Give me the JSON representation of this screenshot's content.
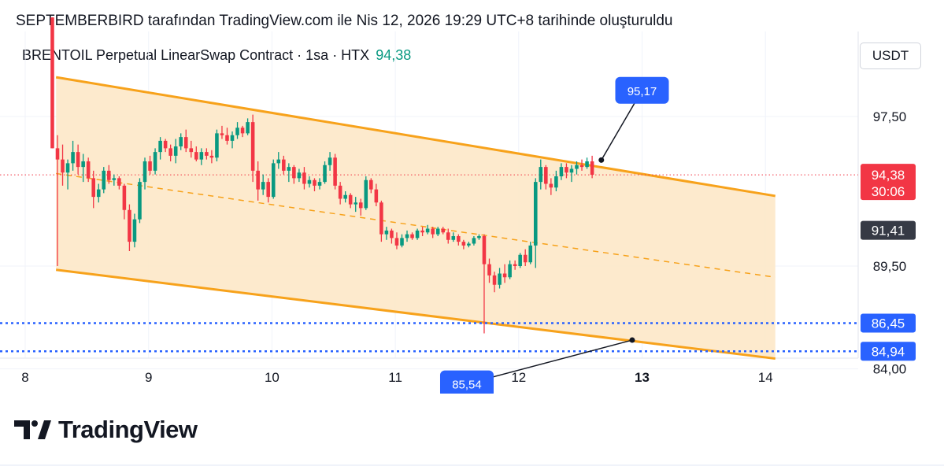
{
  "header": {
    "title": "SEPTEMBERBIRD tarafından TradingView.com ile Nis 12, 2026 19:29 UTC+8 tarihinde oluşturuldu",
    "symbol": "BRENTOIL Perpetual LinearSwap Contract · 1sa · HTX",
    "last_price": "94,38",
    "currency": "USDT"
  },
  "brand": {
    "name": "TradingView"
  },
  "colors": {
    "up": "#089981",
    "down": "#f23645",
    "channel": "#f7a21b",
    "channel_fill": "#fde8c8",
    "level_line": "#2962ff",
    "label_blue": "#2962ff",
    "label_dark": "#363a45"
  },
  "chart_data": {
    "type": "candlestick",
    "x_ticks": [
      {
        "label": "8",
        "t": 8.0,
        "bold": false
      },
      {
        "label": "9",
        "t": 9.0,
        "bold": false
      },
      {
        "label": "10",
        "t": 10.0,
        "bold": false
      },
      {
        "label": "11",
        "t": 11.0,
        "bold": false
      },
      {
        "label": "12",
        "t": 12.0,
        "bold": false
      },
      {
        "label": "13",
        "t": 13.0,
        "bold": true
      },
      {
        "label": "14",
        "t": 14.0,
        "bold": false
      }
    ],
    "y_ticks": [
      "97,50",
      "89,50",
      "84,00"
    ],
    "y_tick_values": [
      97.5,
      89.5,
      84.0
    ],
    "ylim": [
      81.5,
      103
    ],
    "xlim": [
      7.8,
      14.6
    ],
    "last_price": {
      "value": 94.38,
      "label": "94,38",
      "countdown": "30:06"
    },
    "price_labels": [
      {
        "value": 91.41,
        "label": "91,41",
        "style": "dark"
      },
      {
        "value": 86.45,
        "label": "86,45",
        "style": "blue"
      },
      {
        "value": 84.94,
        "label": "84,94",
        "style": "blue"
      }
    ],
    "horizontal_levels": [
      86.45,
      84.94
    ],
    "channel": {
      "upper": [
        [
          8.25,
          99.6
        ],
        [
          14.08,
          93.25
        ]
      ],
      "lower": [
        [
          8.25,
          89.3
        ],
        [
          14.08,
          84.55
        ]
      ],
      "mid": [
        [
          8.25,
          94.45
        ],
        [
          14.08,
          88.9
        ]
      ]
    },
    "callouts": [
      {
        "label": "95,17",
        "value": 95.17,
        "anchor": [
          12.67,
          95.17
        ],
        "box": [
          13.0,
          98.9
        ]
      },
      {
        "label": "85,54",
        "value": 85.54,
        "anchor": [
          12.92,
          85.54
        ],
        "box": [
          11.58,
          83.2
        ]
      }
    ],
    "candles_start": 8.22,
    "candles_step": 0.04167,
    "candles": [
      [
        102.8,
        102.8,
        95.8,
        95.8
      ],
      [
        95.8,
        96.5,
        89.5,
        95.2
      ],
      [
        95.2,
        96.0,
        93.8,
        94.5
      ],
      [
        94.5,
        95.2,
        93.6,
        95.0
      ],
      [
        95.0,
        96.2,
        94.6,
        95.6
      ],
      [
        95.6,
        96.0,
        94.4,
        94.8
      ],
      [
        94.8,
        95.5,
        94.0,
        95.1
      ],
      [
        95.1,
        95.3,
        94.0,
        94.2
      ],
      [
        94.2,
        94.6,
        92.6,
        93.2
      ],
      [
        93.2,
        93.9,
        92.9,
        93.6
      ],
      [
        93.6,
        94.8,
        93.4,
        94.6
      ],
      [
        94.6,
        94.9,
        93.9,
        94.1
      ],
      [
        94.1,
        94.4,
        93.8,
        94.2
      ],
      [
        94.2,
        94.3,
        93.6,
        93.8
      ],
      [
        93.8,
        93.9,
        92.0,
        92.5
      ],
      [
        92.5,
        92.8,
        90.3,
        90.8
      ],
      [
        90.8,
        92.3,
        90.5,
        92.0
      ],
      [
        92.0,
        94.2,
        91.8,
        94.0
      ],
      [
        94.0,
        95.3,
        93.6,
        95.1
      ],
      [
        95.1,
        95.4,
        94.4,
        94.6
      ],
      [
        94.6,
        95.8,
        94.4,
        95.6
      ],
      [
        95.6,
        96.4,
        95.2,
        96.2
      ],
      [
        96.2,
        96.3,
        95.6,
        95.8
      ],
      [
        95.8,
        96.0,
        95.1,
        95.4
      ],
      [
        95.4,
        96.3,
        95.0,
        95.9
      ],
      [
        95.9,
        96.6,
        95.7,
        96.4
      ],
      [
        96.4,
        96.8,
        95.6,
        95.8
      ],
      [
        95.8,
        96.2,
        95.3,
        95.6
      ],
      [
        95.6,
        95.9,
        95.1,
        95.2
      ],
      [
        95.2,
        95.8,
        94.9,
        95.6
      ],
      [
        95.6,
        95.8,
        95.2,
        95.4
      ],
      [
        95.4,
        95.7,
        95.0,
        95.3
      ],
      [
        95.3,
        96.8,
        95.1,
        96.6
      ],
      [
        96.6,
        97.0,
        96.3,
        96.5
      ],
      [
        96.5,
        96.9,
        96.0,
        96.2
      ],
      [
        96.2,
        96.7,
        95.8,
        96.5
      ],
      [
        96.5,
        97.2,
        96.3,
        96.9
      ],
      [
        96.9,
        97.0,
        96.4,
        96.6
      ],
      [
        96.6,
        97.4,
        96.5,
        97.2
      ],
      [
        97.2,
        97.6,
        94.0,
        94.6
      ],
      [
        94.6,
        95.1,
        93.0,
        93.6
      ],
      [
        93.6,
        94.4,
        93.3,
        94.0
      ],
      [
        94.0,
        94.2,
        92.9,
        93.2
      ],
      [
        93.2,
        95.2,
        93.1,
        95.0
      ],
      [
        95.0,
        95.6,
        94.7,
        95.2
      ],
      [
        95.2,
        95.4,
        94.4,
        94.6
      ],
      [
        94.6,
        95.0,
        94.0,
        94.8
      ],
      [
        94.8,
        94.9,
        93.9,
        94.2
      ],
      [
        94.2,
        94.7,
        94.0,
        94.5
      ],
      [
        94.5,
        94.8,
        93.6,
        93.9
      ],
      [
        93.9,
        94.3,
        93.7,
        94.1
      ],
      [
        94.1,
        94.2,
        93.5,
        93.8
      ],
      [
        93.8,
        94.2,
        93.6,
        94.0
      ],
      [
        94.0,
        95.1,
        93.9,
        94.9
      ],
      [
        94.9,
        95.6,
        94.6,
        95.3
      ],
      [
        95.3,
        95.5,
        93.6,
        93.8
      ],
      [
        93.8,
        94.0,
        92.8,
        93.1
      ],
      [
        93.1,
        93.5,
        92.9,
        93.3
      ],
      [
        93.3,
        93.4,
        92.6,
        92.8
      ],
      [
        92.8,
        93.2,
        92.4,
        92.9
      ],
      [
        92.9,
        93.1,
        92.2,
        92.6
      ],
      [
        92.6,
        94.3,
        92.5,
        94.1
      ],
      [
        94.1,
        94.2,
        93.4,
        93.6
      ],
      [
        93.6,
        93.9,
        92.7,
        92.9
      ],
      [
        92.9,
        93.0,
        90.8,
        91.2
      ],
      [
        91.2,
        91.6,
        90.9,
        91.4
      ],
      [
        91.4,
        91.5,
        90.7,
        91.0
      ],
      [
        91.0,
        91.3,
        90.4,
        90.6
      ],
      [
        90.6,
        91.2,
        90.5,
        91.0
      ],
      [
        91.0,
        91.4,
        90.8,
        91.2
      ],
      [
        91.2,
        91.3,
        90.9,
        91.0
      ],
      [
        91.0,
        91.5,
        90.9,
        91.4
      ],
      [
        91.4,
        91.6,
        91.1,
        91.3
      ],
      [
        91.3,
        91.7,
        91.2,
        91.5
      ],
      [
        91.5,
        91.6,
        91.0,
        91.2
      ],
      [
        91.2,
        91.6,
        91.1,
        91.5
      ],
      [
        91.5,
        91.6,
        91.2,
        91.3
      ],
      [
        91.3,
        91.5,
        90.7,
        90.9
      ],
      [
        90.9,
        91.3,
        90.8,
        91.1
      ],
      [
        91.1,
        91.2,
        90.6,
        90.8
      ],
      [
        90.8,
        90.9,
        90.4,
        90.6
      ],
      [
        90.6,
        90.8,
        90.5,
        90.7
      ],
      [
        90.7,
        91.1,
        90.6,
        91.0
      ],
      [
        91.0,
        91.2,
        90.9,
        91.1
      ],
      [
        91.1,
        91.2,
        85.9,
        89.6
      ],
      [
        89.6,
        89.9,
        88.6,
        89.0
      ],
      [
        89.0,
        89.2,
        88.1,
        88.5
      ],
      [
        88.5,
        89.4,
        88.3,
        89.1
      ],
      [
        89.1,
        89.6,
        88.6,
        88.9
      ],
      [
        88.9,
        89.8,
        88.8,
        89.6
      ],
      [
        89.6,
        89.8,
        89.3,
        89.5
      ],
      [
        89.5,
        90.2,
        89.4,
        90.1
      ],
      [
        90.1,
        90.4,
        89.5,
        89.7
      ],
      [
        89.7,
        90.8,
        89.6,
        90.6
      ],
      [
        90.6,
        94.2,
        89.4,
        94.0
      ],
      [
        94.0,
        95.2,
        93.6,
        94.8
      ],
      [
        94.8,
        94.9,
        93.6,
        93.9
      ],
      [
        93.9,
        94.2,
        93.3,
        93.7
      ],
      [
        93.7,
        94.6,
        93.5,
        94.3
      ],
      [
        94.3,
        95.0,
        94.1,
        94.8
      ],
      [
        94.8,
        95.0,
        94.2,
        94.5
      ],
      [
        94.5,
        94.9,
        94.0,
        94.7
      ],
      [
        94.7,
        95.1,
        94.4,
        94.9
      ],
      [
        94.9,
        95.2,
        94.6,
        94.8
      ],
      [
        94.8,
        95.3,
        94.7,
        95.1
      ],
      [
        95.1,
        95.4,
        94.2,
        94.38
      ]
    ]
  }
}
